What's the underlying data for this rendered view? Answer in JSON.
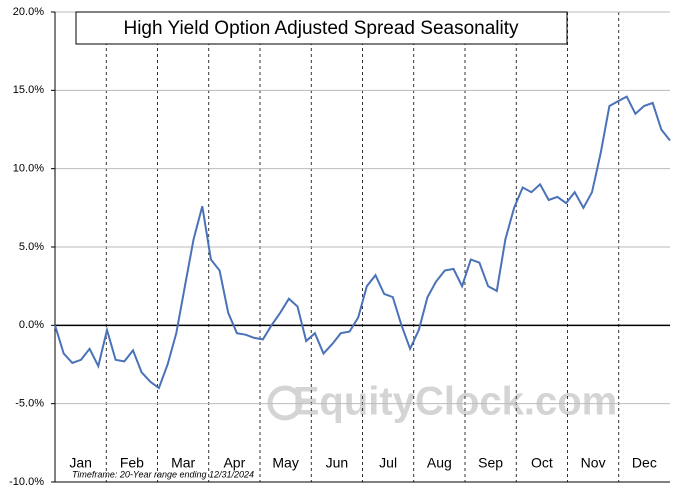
{
  "chart_data": {
    "type": "line",
    "title": "High Yield Option Adjusted Spread Seasonality",
    "annotation": "Timeframe: 20-Year range ending 12/31/2024",
    "watermark": "EquityClock.com",
    "x_labels": [
      "Jan",
      "Feb",
      "Mar",
      "Apr",
      "May",
      "Jun",
      "Jul",
      "Aug",
      "Sep",
      "Oct",
      "Nov",
      "Dec"
    ],
    "series": [
      {
        "name": "Seasonality",
        "color": "#4a72b8",
        "values": [
          0,
          -1.8,
          -2.4,
          -2.2,
          -1.5,
          -2.6,
          -0.3,
          -2.2,
          -2.3,
          -1.6,
          -3.0,
          -3.6,
          -4.0,
          -2.5,
          -0.5,
          2.5,
          5.5,
          7.6,
          4.2,
          3.5,
          0.8,
          -0.5,
          -0.6,
          -0.8,
          -0.9,
          0.0,
          0.8,
          1.7,
          1.2,
          -1.0,
          -0.5,
          -1.8,
          -1.2,
          -0.5,
          -0.4,
          0.5,
          2.5,
          3.2,
          2.0,
          1.8,
          0.0,
          -1.5,
          -0.3,
          1.8,
          2.8,
          3.5,
          3.6,
          2.5,
          4.2,
          4.0,
          2.5,
          2.2,
          5.5,
          7.5,
          8.8,
          8.5,
          9.0,
          8.0,
          8.2,
          7.8,
          8.5,
          7.5,
          8.5,
          11.0,
          14.0,
          14.3,
          14.6,
          13.5,
          14.0,
          14.2,
          12.5,
          11.8
        ]
      }
    ],
    "ylim": [
      -10,
      20
    ],
    "yticks": [
      {
        "value": -10,
        "label": "-10.0%"
      },
      {
        "value": -5,
        "label": "-5.0%"
      },
      {
        "value": 0,
        "label": "0.0%"
      },
      {
        "value": 5,
        "label": "5.0%"
      },
      {
        "value": 10,
        "label": "10.0%"
      },
      {
        "value": 15,
        "label": "15.0%"
      },
      {
        "value": 20,
        "label": "20.0%"
      }
    ],
    "grid": true
  }
}
